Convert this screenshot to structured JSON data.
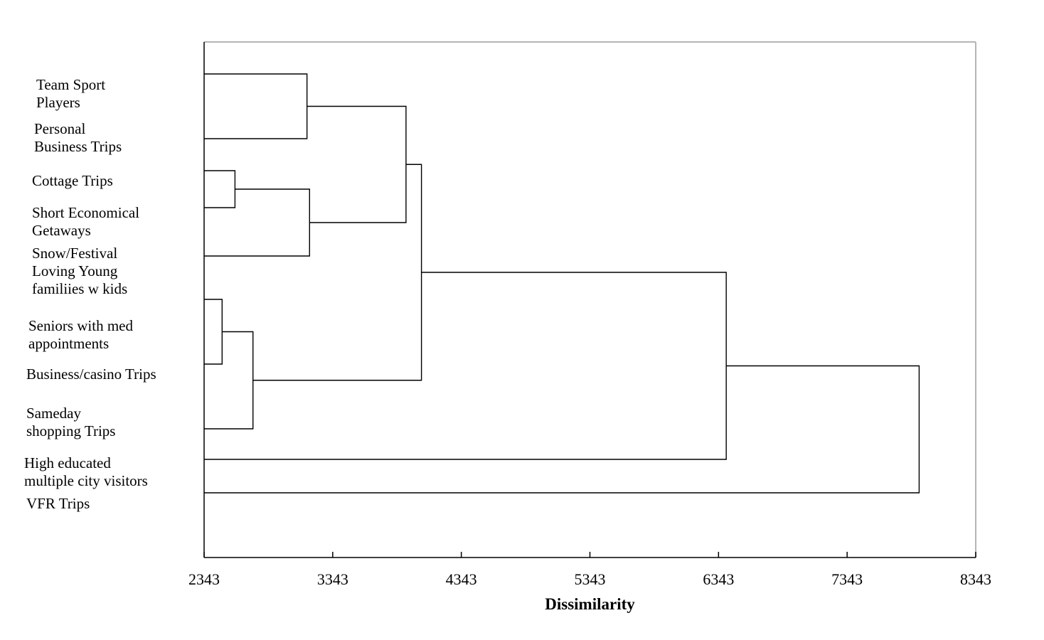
{
  "chart_data": {
    "type": "dendrogram",
    "orientation": "horizontal",
    "xlabel": "Dissimilarity",
    "xlim": [
      2343,
      8343
    ],
    "xticks": [
      2343,
      3343,
      4343,
      5343,
      6343,
      7343,
      8343
    ],
    "leaves": [
      {
        "id": "team-sport-players",
        "lines": [
          "Team Sport",
          "Players"
        ]
      },
      {
        "id": "personal-business-trips",
        "lines": [
          "Personal",
          "Business Trips"
        ]
      },
      {
        "id": "cottage-trips",
        "lines": [
          "Cottage Trips"
        ]
      },
      {
        "id": "short-economical-getaways",
        "lines": [
          "Short Economical",
          "Getaways"
        ]
      },
      {
        "id": "snow-festival-loving-young-families",
        "lines": [
          "Snow/Festival",
          "Loving Young",
          "familiies w kids"
        ]
      },
      {
        "id": "seniors-with-med-appointments",
        "lines": [
          "Seniors with med",
          "appointments"
        ]
      },
      {
        "id": "business-casino-trips",
        "lines": [
          "Business/casino Trips"
        ]
      },
      {
        "id": "sameday-shopping-trips",
        "lines": [
          "Sameday",
          "shopping Trips"
        ]
      },
      {
        "id": "high-educated-multiple-city-visitors",
        "lines": [
          "High educated",
          "multiple city visitors"
        ]
      },
      {
        "id": "vfr-trips",
        "lines": [
          "VFR Trips"
        ]
      }
    ],
    "merges": [
      {
        "id": "m1",
        "children": [
          "team-sport-players",
          "personal-business-trips"
        ],
        "height": 3143
      },
      {
        "id": "m2",
        "children": [
          "cottage-trips",
          "short-economical-getaways"
        ],
        "height": 2583
      },
      {
        "id": "m3",
        "children": [
          "m2",
          "snow-festival-loving-young-families"
        ],
        "height": 3163
      },
      {
        "id": "m4",
        "children": [
          "m1",
          "m3"
        ],
        "height": 3913
      },
      {
        "id": "m5",
        "children": [
          "seniors-with-med-appointments",
          "business-casino-trips"
        ],
        "height": 2483
      },
      {
        "id": "m6",
        "children": [
          "m5",
          "sameday-shopping-trips"
        ],
        "height": 2723
      },
      {
        "id": "m7",
        "children": [
          "m4",
          "m6"
        ],
        "height": 4033
      },
      {
        "id": "m8",
        "children": [
          "m7",
          "high-educated-multiple-city-visitors"
        ],
        "height": 6403
      },
      {
        "id": "m9",
        "children": [
          "m8",
          "vfr-trips"
        ],
        "height": 7903
      }
    ]
  }
}
